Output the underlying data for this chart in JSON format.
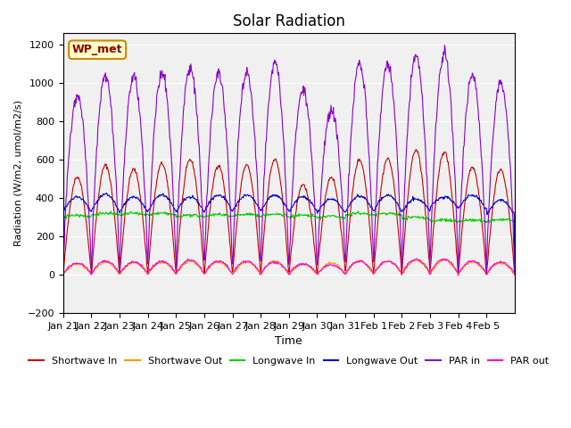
{
  "title": "Solar Radiation",
  "ylabel": "Radiation (W/m2, umol/m2/s)",
  "xlabel": "Time",
  "ylim": [
    -200,
    1260
  ],
  "yticks": [
    -200,
    0,
    200,
    400,
    600,
    800,
    1000,
    1200
  ],
  "x_labels": [
    "Jan 21",
    "Jan 22",
    "Jan 23",
    "Jan 24",
    "Jan 25",
    "Jan 26",
    "Jan 27",
    "Jan 28",
    "Jan 29",
    "Jan 30",
    "Jan 31",
    "Feb 1",
    "Feb 2",
    "Feb 3",
    "Feb 4",
    "Feb 5"
  ],
  "legend_label": "WP_met",
  "series_labels": [
    "Shortwave In",
    "Shortwave Out",
    "Longwave In",
    "Longwave Out",
    "PAR in",
    "PAR out"
  ],
  "series_colors": [
    "#cc0000",
    "#ff9900",
    "#00cc00",
    "#0000cc",
    "#8800cc",
    "#ff00cc"
  ],
  "plot_bg_color": "#f0f0f0",
  "n_days": 16,
  "n_points_per_day": 48
}
